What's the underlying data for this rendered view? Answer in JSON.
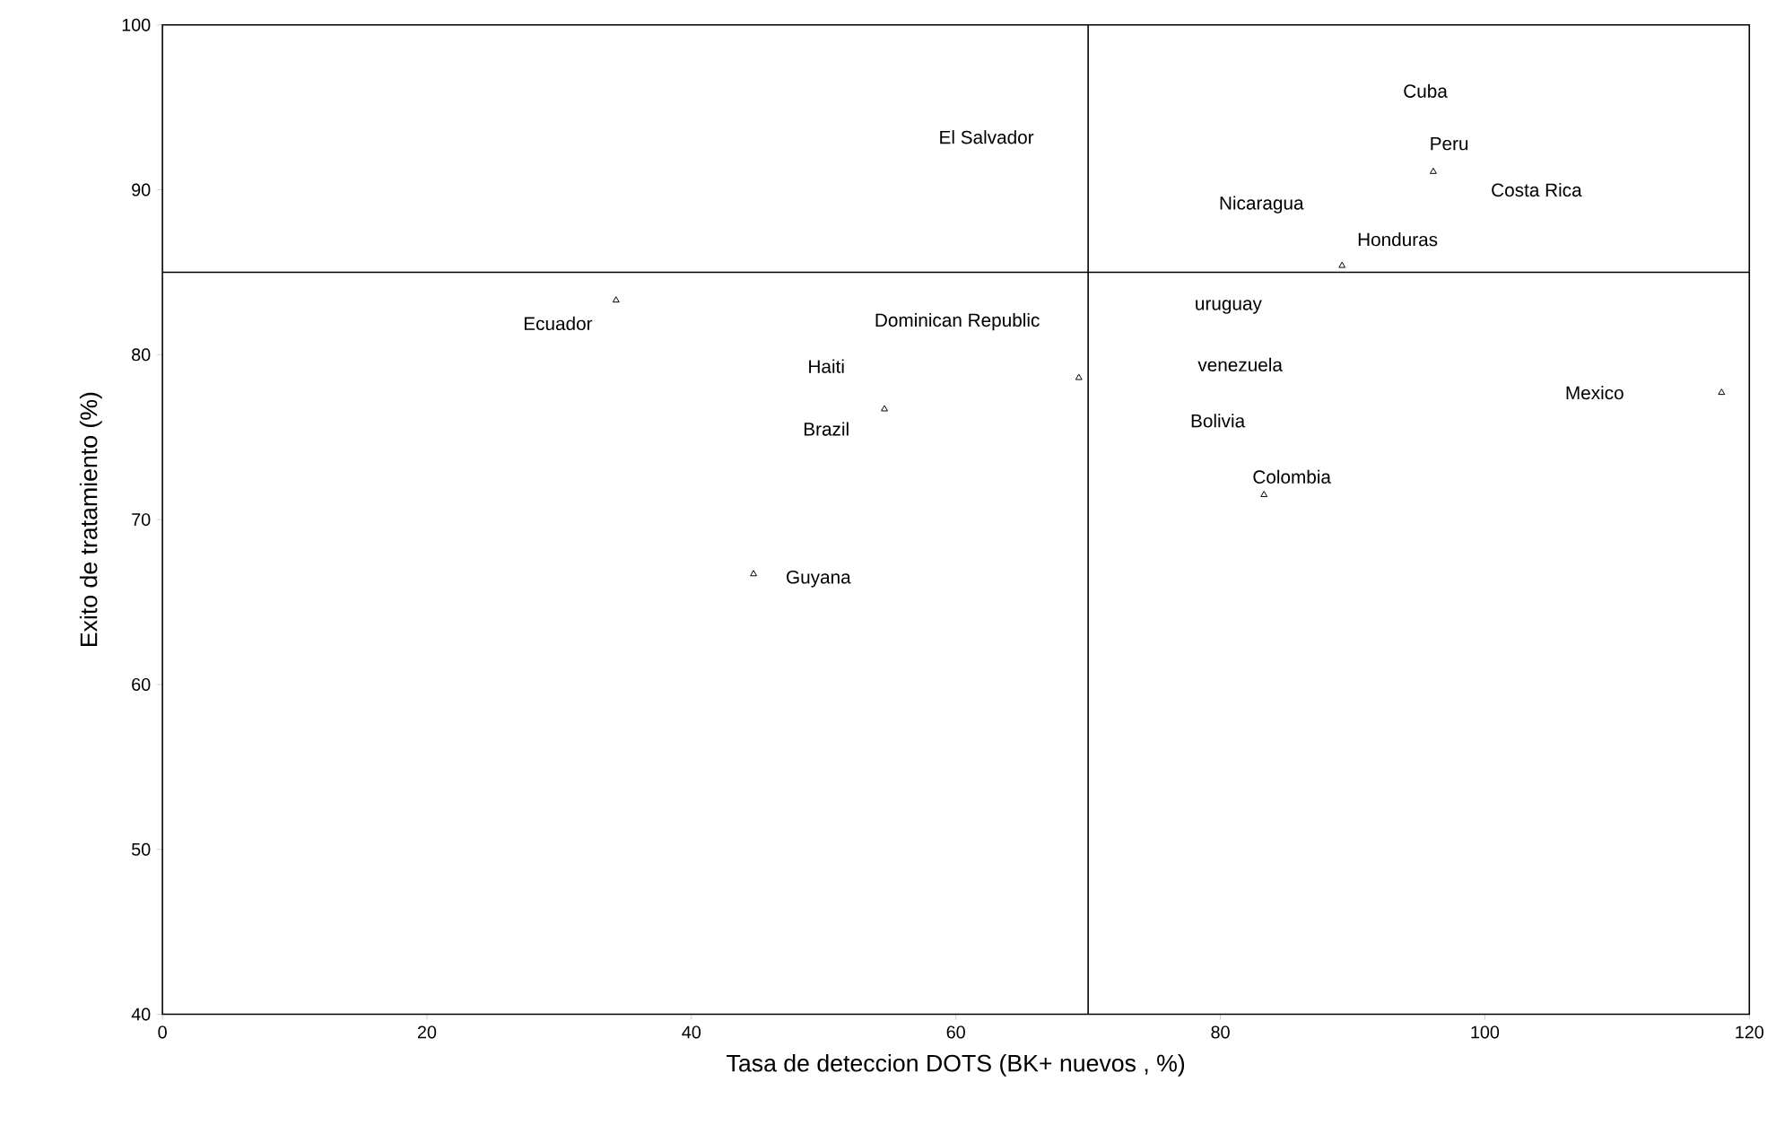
{
  "chart_data": {
    "type": "scatter",
    "xlabel": "Tasa de deteccion  DOTS (BK+ nuevos , %)",
    "ylabel": "Exito de tratamiento  (%)",
    "x": [
      34.3,
      54.6,
      44.7,
      69.3,
      83.3,
      89.2,
      96.1,
      117.9
    ],
    "values": [
      83.3,
      76.7,
      66.7,
      78.6,
      71.5,
      85.4,
      91.1,
      77.7
    ],
    "color": "#000000",
    "marker": "triangle",
    "xlim": [
      0,
      120
    ],
    "ylim": [
      40,
      100
    ],
    "xticks": [
      0,
      20,
      40,
      60,
      80,
      100,
      120
    ],
    "yticks": [
      40,
      50,
      60,
      70,
      80,
      90,
      100
    ],
    "ref_lines": [
      {
        "axis": "x",
        "value": 70,
        "color": "#000000"
      },
      {
        "axis": "y",
        "value": 85,
        "color": "#000000"
      }
    ],
    "annotations": [
      "Cuba",
      "Peru",
      "Costa Rica",
      "Nicaragua",
      "Honduras",
      "El Salvador",
      "Ecuador",
      "Dominican Republic",
      "Haiti",
      "Brazil",
      "Guyana",
      "uruguay",
      "venezuela",
      "Bolivia",
      "Colombia",
      "Mexico"
    ]
  }
}
